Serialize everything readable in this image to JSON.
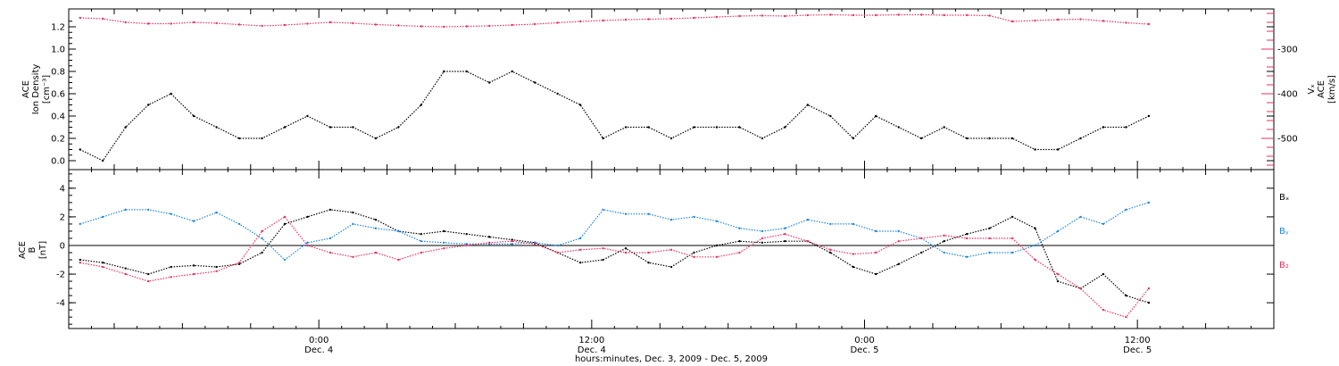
{
  "colors": {
    "black": "#000000",
    "pink": "#e8325f",
    "blue": "#1f87e0"
  },
  "x_axis": {
    "title": "hours:minutes, Dec.  3, 2009 - Dec.  5, 2009",
    "ticks": [
      {
        "time": "0:00",
        "date": "Dec. 4",
        "hour": 24
      },
      {
        "time": "12:00",
        "date": "Dec. 4",
        "hour": 36
      },
      {
        "time": "0:00",
        "date": "Dec. 5",
        "hour": 48
      },
      {
        "time": "12:00",
        "date": "Dec. 5",
        "hour": 60
      }
    ],
    "range_hours": [
      13,
      66
    ]
  },
  "chart_data": [
    {
      "type": "scatter",
      "panel": "top",
      "ylabel_lines": [
        "ACE",
        "Ion Density",
        "[cm⁻³]"
      ],
      "ylim": [
        -0.08,
        1.36
      ],
      "yticks": [
        "0.0",
        "0.2",
        "0.4",
        "0.6",
        "0.8",
        "1.0",
        "1.2"
      ],
      "y2label_lines": [
        "Vₓ",
        "ACE",
        "[km/s]"
      ],
      "y2lim": [
        -570,
        -210
      ],
      "y2ticks": [
        "-300",
        "-400",
        "-500"
      ],
      "series": [
        {
          "color": "black",
          "x_hours": [
            13.5,
            14.5,
            15.5,
            16.5,
            17.5,
            18.5,
            19.5,
            20.5,
            21.5,
            22.5,
            23.5,
            24.5,
            25.5,
            26.5,
            27.5,
            28.5,
            29.5,
            30.5,
            31.5,
            32.5,
            33.5,
            34.5,
            35.5,
            36.5,
            37.5,
            38.5,
            39.5,
            40.5,
            41.5,
            42.5,
            43.5,
            44.5,
            45.5,
            46.5,
            47.5,
            48.5,
            49.5,
            50.5,
            51.5,
            52.5,
            53.5,
            54.5,
            55.5,
            56.5,
            57.5,
            58.5,
            59.5,
            60.5
          ],
          "y": [
            0.1,
            0.0,
            0.3,
            0.5,
            0.6,
            0.4,
            0.3,
            0.2,
            0.2,
            0.3,
            0.4,
            0.3,
            0.3,
            0.2,
            0.3,
            0.5,
            0.8,
            0.8,
            0.7,
            0.8,
            0.7,
            0.6,
            0.5,
            0.2,
            0.3,
            0.3,
            0.2,
            0.3,
            0.3,
            0.3,
            0.2,
            0.3,
            0.5,
            0.4,
            0.2,
            0.4,
            0.3,
            0.2,
            0.3,
            0.2,
            0.2,
            0.2,
            0.1,
            0.1,
            0.2,
            0.3,
            0.3,
            0.4
          ]
        },
        {
          "color": "pink",
          "axis": "right",
          "x_hours": [
            13.5,
            14.5,
            15.5,
            16.5,
            17.5,
            18.5,
            19.5,
            20.5,
            21.5,
            22.5,
            23.5,
            24.5,
            25.5,
            26.5,
            27.5,
            28.5,
            29.5,
            30.5,
            31.5,
            32.5,
            33.5,
            34.5,
            35.5,
            36.5,
            37.5,
            38.5,
            39.5,
            40.5,
            41.5,
            42.5,
            43.5,
            44.5,
            45.5,
            46.5,
            47.5,
            48.5,
            49.5,
            50.5,
            51.5,
            52.5,
            53.5,
            54.5,
            55.5,
            56.5,
            57.5,
            58.5,
            59.5,
            60.5
          ],
          "y": [
            -230,
            -232,
            -240,
            -243,
            -243,
            -240,
            -242,
            -245,
            -248,
            -246,
            -243,
            -240,
            -242,
            -245,
            -247,
            -249,
            -250,
            -249,
            -248,
            -246,
            -244,
            -241,
            -238,
            -236,
            -234,
            -233,
            -232,
            -230,
            -228,
            -226,
            -225,
            -226,
            -224,
            -223,
            -224,
            -224,
            -223,
            -223,
            -224,
            -224,
            -225,
            -238,
            -236,
            -234,
            -233,
            -237,
            -241,
            -244
          ]
        }
      ]
    },
    {
      "type": "scatter",
      "panel": "bottom",
      "ylabel_lines": [
        "ACE",
        "B",
        "[nT]"
      ],
      "ylim": [
        -5.8,
        5.3
      ],
      "yticks": [
        "-4",
        "-2",
        "0",
        "2",
        "4"
      ],
      "legend": [
        {
          "label": "Bₓ",
          "color": "black"
        },
        {
          "label": "Bᵧ",
          "color": "blue"
        },
        {
          "label": "B₂",
          "color": "pink"
        }
      ],
      "legend_placement": "right",
      "series": [
        {
          "name": "Bₓ",
          "color": "black",
          "x_hours": [
            13.5,
            14.5,
            15.5,
            16.5,
            17.5,
            18.5,
            19.5,
            20.5,
            21.5,
            22.5,
            23.5,
            24.5,
            25.5,
            26.5,
            27.5,
            28.5,
            29.5,
            30.5,
            31.5,
            32.5,
            33.5,
            34.5,
            35.5,
            36.5,
            37.5,
            38.5,
            39.5,
            40.5,
            41.5,
            42.5,
            43.5,
            44.5,
            45.5,
            46.5,
            47.5,
            48.5,
            49.5,
            50.5,
            51.5,
            52.5,
            53.5,
            54.5,
            55.5,
            56.5,
            57.5,
            58.5,
            59.5,
            60.5
          ],
          "y": [
            -1.0,
            -1.2,
            -1.6,
            -2.0,
            -1.5,
            -1.4,
            -1.5,
            -1.3,
            -0.5,
            1.5,
            2.0,
            2.5,
            2.3,
            1.8,
            1.0,
            0.8,
            1.0,
            0.8,
            0.6,
            0.4,
            0.2,
            -0.5,
            -1.2,
            -1.0,
            -0.2,
            -1.2,
            -1.5,
            -0.5,
            0.0,
            0.3,
            0.2,
            0.3,
            0.3,
            -0.5,
            -1.5,
            -2.0,
            -1.3,
            -0.5,
            0.3,
            0.8,
            1.2,
            2.0,
            1.2,
            -2.5,
            -3.0,
            -2.0,
            -3.5,
            -4.0
          ]
        },
        {
          "name": "Bᵧ",
          "color": "blue",
          "x_hours": [
            13.5,
            14.5,
            15.5,
            16.5,
            17.5,
            18.5,
            19.5,
            20.5,
            21.5,
            22.5,
            23.5,
            24.5,
            25.5,
            26.5,
            27.5,
            28.5,
            29.5,
            30.5,
            31.5,
            32.5,
            33.5,
            34.5,
            35.5,
            36.5,
            37.5,
            38.5,
            39.5,
            40.5,
            41.5,
            42.5,
            43.5,
            44.5,
            45.5,
            46.5,
            47.5,
            48.5,
            49.5,
            50.5,
            51.5,
            52.5,
            53.5,
            54.5,
            55.5,
            56.5,
            57.5,
            58.5,
            59.5,
            60.5
          ],
          "y": [
            1.5,
            2.0,
            2.5,
            2.5,
            2.2,
            1.7,
            2.3,
            1.5,
            0.5,
            -1.0,
            0.2,
            0.5,
            1.5,
            1.2,
            1.0,
            0.3,
            0.2,
            0.1,
            0.1,
            0.1,
            0.2,
            0.0,
            0.5,
            2.5,
            2.2,
            2.2,
            1.8,
            2.0,
            1.7,
            1.2,
            1.0,
            1.2,
            1.8,
            1.5,
            1.5,
            1.0,
            1.0,
            0.5,
            -0.5,
            -0.8,
            -0.5,
            -0.5,
            0.0,
            1.0,
            2.0,
            1.5,
            2.5,
            3.0
          ]
        },
        {
          "name": "B₂",
          "color": "pink",
          "x_hours": [
            13.5,
            14.5,
            15.5,
            16.5,
            17.5,
            18.5,
            19.5,
            20.5,
            21.5,
            22.5,
            23.5,
            24.5,
            25.5,
            26.5,
            27.5,
            28.5,
            29.5,
            30.5,
            31.5,
            32.5,
            33.5,
            34.5,
            35.5,
            36.5,
            37.5,
            38.5,
            39.5,
            40.5,
            41.5,
            42.5,
            43.5,
            44.5,
            45.5,
            46.5,
            47.5,
            48.5,
            49.5,
            50.5,
            51.5,
            52.5,
            53.5,
            54.5,
            55.5,
            56.5,
            57.5,
            58.5,
            59.5,
            60.5
          ],
          "y": [
            -1.2,
            -1.5,
            -2.0,
            -2.5,
            -2.2,
            -2.0,
            -1.8,
            -1.2,
            1.0,
            2.0,
            0.0,
            -0.5,
            -0.8,
            -0.5,
            -1.0,
            -0.5,
            -0.2,
            0.0,
            0.2,
            0.3,
            0.1,
            -0.5,
            -0.3,
            -0.2,
            -0.5,
            -0.5,
            -0.3,
            -0.8,
            -0.8,
            -0.5,
            0.5,
            0.8,
            0.3,
            -0.3,
            -0.6,
            -0.5,
            0.3,
            0.5,
            0.7,
            0.5,
            0.5,
            0.5,
            -1.0,
            -2.0,
            -3.0,
            -4.5,
            -5.0,
            -3.0
          ]
        }
      ]
    }
  ]
}
